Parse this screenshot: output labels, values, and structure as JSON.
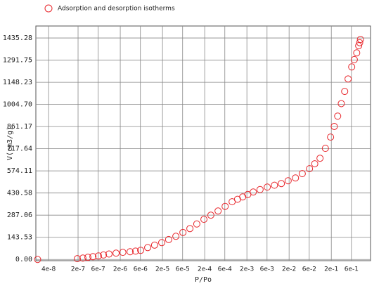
{
  "chart_data": {
    "type": "scatter",
    "x_label": "P/Po",
    "y_label": "V(cm3/g)",
    "x_scale": "log",
    "grid": true,
    "legend": "top-left",
    "xlim": [
      2e-08,
      1.7
    ],
    "ylim": [
      -8,
      1513
    ],
    "xticks": [
      {
        "value": 4e-08,
        "label": "4e-8"
      },
      {
        "value": 2e-07,
        "label": "2e-7"
      },
      {
        "value": 6e-07,
        "label": "6e-7"
      },
      {
        "value": 2e-06,
        "label": "2e-6"
      },
      {
        "value": 6e-06,
        "label": "6e-6"
      },
      {
        "value": 2e-05,
        "label": "2e-5"
      },
      {
        "value": 6e-05,
        "label": "6e-5"
      },
      {
        "value": 0.0002,
        "label": "2e-4"
      },
      {
        "value": 0.0006,
        "label": "6e-4"
      },
      {
        "value": 0.002,
        "label": "2e-3"
      },
      {
        "value": 0.006,
        "label": "6e-3"
      },
      {
        "value": 0.02,
        "label": "2e-2"
      },
      {
        "value": 0.06,
        "label": "6e-2"
      },
      {
        "value": 0.2,
        "label": "2e-1"
      },
      {
        "value": 0.6,
        "label": "6e-1"
      }
    ],
    "yticks": [
      {
        "value": 0,
        "label": "0.00"
      },
      143.53,
      287.06,
      430.58,
      574.11,
      717.64,
      861.17,
      {
        "value": 1004.7,
        "label": "1004.70"
      },
      1148.23,
      1291.75,
      1435.28
    ],
    "x": [
      2.2e-08,
      1.92e-07,
      2.6e-07,
      3.42e-07,
      4.5e-07,
      6.08e-07,
      8e-07,
      1.08e-06,
      1.59e-06,
      2.3e-06,
      3.42e-06,
      4.6e-06,
      6.08e-06,
      8.93e-06,
      1.3e-05,
      1.92e-05,
      2.8e-05,
      4.15e-05,
      6.1e-05,
      8.93e-05,
      0.00013,
      0.000192,
      0.00028,
      0.000415,
      0.00061,
      0.000893,
      0.0012,
      0.00159,
      0.0021,
      0.00283,
      0.0041,
      0.00608,
      0.009,
      0.0131,
      0.019,
      0.0283,
      0.041,
      0.0608,
      0.081,
      0.108,
      0.145,
      0.192,
      0.235,
      0.283,
      0.345,
      0.415,
      0.5,
      0.608,
      0.7,
      0.8,
      0.89,
      0.94,
      0.98
    ],
    "series": [
      {
        "name": "Adsorption and desorption isotherms",
        "color": "#e8262b",
        "values": [
          0,
          5,
          9,
          14,
          18,
          23,
          29,
          35,
          41,
          46,
          50,
          54,
          59,
          77,
          93,
          109,
          129,
          150,
          175,
          200,
          230,
          260,
          287,
          314,
          344,
          374,
          390,
          405,
          421,
          437,
          453,
          469,
          481,
          492,
          510,
          528,
          556,
          588,
          620,
          656,
          720,
          793,
          862,
          929,
          1010,
          1089,
          1170,
          1248,
          1295,
          1339,
          1385,
          1405,
          1426
        ]
      }
    ]
  }
}
